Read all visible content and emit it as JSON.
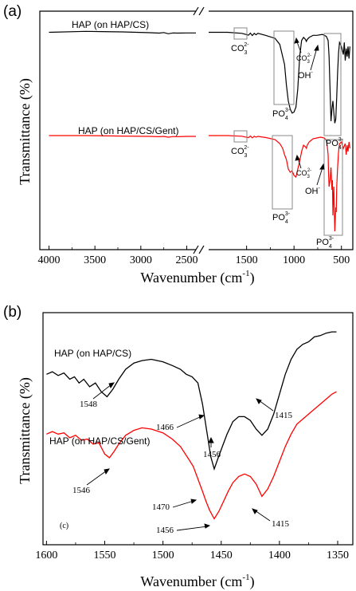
{
  "chart_data": [
    {
      "panel": "(a)",
      "type": "line",
      "xlabel": "Wavenumber (cm",
      "xlabel_sup": "-1",
      "xlabel_close": ")",
      "ylabel": "Transmittance (%)",
      "x_ticks": [
        "4000",
        "3500",
        "3000",
        "2500",
        "1500",
        "1000",
        "500"
      ],
      "xlim_left": [
        4100,
        2400
      ],
      "xlim_right": [
        1900,
        380
      ],
      "axis_break": true,
      "series": [
        {
          "name": "HAP (on HAP/CS)",
          "color": "#000000",
          "x": [
            4000,
            3600,
            3200,
            2900,
            2800,
            2750,
            2700,
            2650,
            2600,
            2500,
            2400,
            1900,
            1700,
            1550,
            1480,
            1460,
            1440,
            1420,
            1400,
            1380,
            1300,
            1200,
            1150,
            1100,
            1080,
            1060,
            1040,
            1020,
            1000,
            980,
            960,
            940,
            920,
            900,
            880,
            870,
            860,
            840,
            820,
            800,
            760,
            700,
            660,
            640,
            630,
            620,
            610,
            600,
            590,
            580,
            570,
            565,
            560,
            550,
            540,
            530,
            520,
            500,
            480,
            470,
            460,
            450,
            440,
            430,
            420,
            410
          ],
          "y": [
            100,
            100.5,
            100.2,
            99.8,
            99.6,
            99.9,
            99.3,
            99.7,
            99.6,
            99.7,
            99.7,
            100,
            100,
            99.5,
            98.6,
            99.6,
            98.4,
            99.5,
            98.8,
            99.5,
            98.5,
            97,
            94,
            84,
            74,
            66,
            62,
            60,
            60.5,
            63,
            72,
            88,
            96,
            97.5,
            96.5,
            95.5,
            96.5,
            97.5,
            98,
            98.5,
            98.5,
            99,
            98,
            96,
            88,
            72,
            56,
            62,
            66,
            60,
            55,
            56,
            57,
            68,
            80,
            90,
            95,
            93,
            89,
            95,
            86,
            92,
            88,
            93,
            87,
            93
          ],
          "annotations": [
            "CO32- (boxed ~1450)",
            "PO43- (boxed ~1050)",
            "CO32- (~880)",
            "OH- (~630)",
            "PO43- (boxed ~580)"
          ]
        },
        {
          "name": "HAP (on HAP/CS/Gent)",
          "color": "#ff0000",
          "x": [
            4000,
            3600,
            3200,
            2900,
            2800,
            2750,
            2700,
            2650,
            2600,
            2500,
            2400,
            1900,
            1700,
            1550,
            1480,
            1460,
            1440,
            1420,
            1400,
            1380,
            1300,
            1200,
            1150,
            1120,
            1100,
            1080,
            1060,
            1040,
            1020,
            1000,
            980,
            960,
            940,
            920,
            900,
            880,
            870,
            860,
            840,
            820,
            800,
            760,
            720,
            680,
            660,
            650,
            640,
            635,
            630,
            620,
            610,
            600,
            595,
            590,
            585,
            580,
            575,
            570,
            565,
            560,
            555,
            550,
            540,
            530,
            520,
            500,
            480,
            460,
            450,
            440,
            430,
            420,
            410
          ],
          "y": [
            100,
            100,
            99.7,
            99.5,
            99.3,
            99.5,
            99,
            99.4,
            99.3,
            99.5,
            99.5,
            100,
            100,
            99.6,
            98.7,
            99.7,
            98.6,
            99.6,
            99,
            99.5,
            98.8,
            97.5,
            95,
            92,
            88,
            85,
            79,
            77,
            78,
            75,
            74,
            79,
            84,
            90,
            94,
            93,
            92,
            94,
            96,
            97,
            98,
            98.5,
            99,
            98.5,
            97,
            94,
            88,
            75,
            68,
            72,
            80,
            66,
            72,
            50,
            62,
            68,
            52,
            40,
            48,
            55,
            52,
            68,
            80,
            90,
            95,
            96,
            92,
            95,
            88,
            94,
            90,
            96,
            92
          ],
          "annotations": [
            "CO32- (boxed ~1450)",
            "PO43- (boxed ~1050)",
            "CO32- (~880)",
            "OH- (~630)",
            "PO43- (boxed ~580)"
          ]
        }
      ]
    },
    {
      "panel": "(b)",
      "type": "line",
      "xlabel": "Wavenumber (cm",
      "xlabel_sup": "-1",
      "xlabel_close": ")",
      "ylabel": "Transmittance (%)",
      "x_ticks": [
        "1600",
        "1550",
        "1500",
        "1450",
        "1400",
        "1350"
      ],
      "xlim": [
        1603,
        1337
      ],
      "series": [
        {
          "name": "HAP (on HAP/CS)",
          "color": "#000000",
          "x": [
            1600,
            1595,
            1590,
            1585,
            1580,
            1576,
            1572,
            1568,
            1563,
            1558,
            1553,
            1548,
            1543,
            1538,
            1532,
            1525,
            1518,
            1510,
            1500,
            1492,
            1485,
            1480,
            1475,
            1470,
            1466,
            1462,
            1459,
            1456,
            1453,
            1449,
            1445,
            1440,
            1435,
            1430,
            1425,
            1420,
            1415,
            1410,
            1405,
            1400,
            1395,
            1390,
            1385,
            1380,
            1375,
            1370,
            1365,
            1360,
            1355,
            1351
          ],
          "y": [
            62,
            63,
            61.5,
            62.5,
            60,
            61,
            58.5,
            60,
            57,
            58.5,
            55,
            53,
            56,
            60,
            64,
            66.5,
            67.5,
            68,
            67,
            65.5,
            64,
            62,
            61,
            58.5,
            50,
            38,
            29,
            24,
            28,
            33,
            38,
            43,
            45,
            45,
            43.5,
            40,
            37.5,
            40,
            46,
            54,
            62,
            68,
            72,
            74,
            75,
            77,
            77.5,
            78.5,
            79,
            79
          ],
          "labels": [
            "1548",
            "1466",
            "1456",
            "1415"
          ]
        },
        {
          "name": "HAP (on HAP/CS/Gent)",
          "color": "#ff0000",
          "x": [
            1600,
            1595,
            1590,
            1585,
            1580,
            1575,
            1570,
            1565,
            1560,
            1555,
            1550,
            1546,
            1542,
            1538,
            1532,
            1525,
            1518,
            1510,
            1500,
            1492,
            1485,
            1478,
            1474,
            1470,
            1466,
            1463,
            1460,
            1456,
            1452,
            1448,
            1444,
            1440,
            1435,
            1430,
            1425,
            1420,
            1415,
            1410,
            1405,
            1400,
            1395,
            1390,
            1385,
            1380,
            1375,
            1370,
            1365,
            1360,
            1355,
            1351
          ],
          "y": [
            38,
            39,
            38,
            38.5,
            36.5,
            37.5,
            35.5,
            36,
            34,
            34.5,
            30,
            28.5,
            31,
            34,
            37.5,
            39.5,
            40.5,
            40,
            38.5,
            36,
            33,
            28,
            25,
            20,
            15,
            11,
            7.5,
            4,
            7,
            11,
            15,
            18.5,
            21,
            22,
            21,
            18,
            13,
            16,
            21,
            27,
            33,
            38,
            42,
            44,
            46,
            48,
            50,
            52,
            54,
            55
          ],
          "labels": [
            "1546",
            "1470",
            "1456",
            "1415"
          ]
        }
      ],
      "inner_label": "(c)"
    }
  ],
  "labels": {
    "panel_a": "(a)",
    "panel_b": "(b)",
    "panel_c": "(c)",
    "series_cs": "HAP (on HAP/CS)",
    "series_gent": "HAP (on HAP/CS/Gent)",
    "co3": "CO",
    "co3_sub": "3",
    "co3_sup": "2-",
    "po4": "PO",
    "po4_sub": "4",
    "po4_sup": "3-",
    "oh": "OH",
    "oh_sup": "-",
    "b_peaks_cs": [
      "1548",
      "1466",
      "1456",
      "1415"
    ],
    "b_peaks_gent": [
      "1546",
      "1470",
      "1456",
      "1415"
    ]
  }
}
